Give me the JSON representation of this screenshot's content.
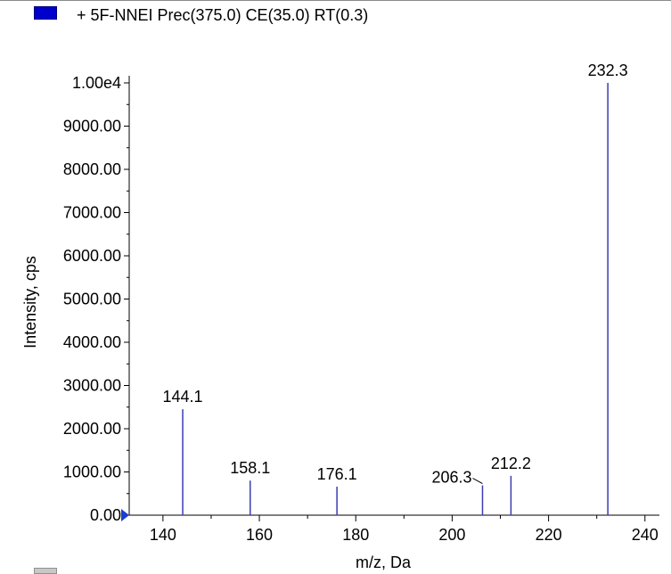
{
  "legend": {
    "label": "+ 5F-NNEI Prec(375.0) CE(35.0) RT(0.3)",
    "color": "#0000cc"
  },
  "chart_data": {
    "type": "bar",
    "style": "stick-spectrum",
    "title": "",
    "xlabel": "m/z, Da",
    "ylabel": "Intensity, cps",
    "xlim": [
      133,
      243
    ],
    "ylim": [
      0,
      10000
    ],
    "x_ticks": [
      140,
      160,
      180,
      200,
      220,
      240
    ],
    "x_tick_labels": [
      "140",
      "160",
      "180",
      "200",
      "220",
      "240"
    ],
    "y_ticks": [
      0,
      1000,
      2000,
      3000,
      4000,
      5000,
      6000,
      7000,
      8000,
      9000,
      10000
    ],
    "y_tick_labels": [
      "0.00",
      "1000.00",
      "2000.00",
      "3000.00",
      "4000.00",
      "5000.00",
      "6000.00",
      "7000.00",
      "8000.00",
      "9000.00",
      "1.00e4"
    ],
    "series": [
      {
        "color": "#3c3cb4",
        "peaks": [
          {
            "mz": 144.1,
            "intensity": 2450,
            "label": "144.1"
          },
          {
            "mz": 158.1,
            "intensity": 800,
            "label": "158.1"
          },
          {
            "mz": 176.1,
            "intensity": 660,
            "label": "176.1"
          },
          {
            "mz": 206.3,
            "intensity": 690,
            "label": "206.3"
          },
          {
            "mz": 212.2,
            "intensity": 910,
            "label": "212.2"
          },
          {
            "mz": 232.3,
            "intensity": 10000,
            "label": "232.3"
          }
        ]
      }
    ],
    "grid": false
  }
}
